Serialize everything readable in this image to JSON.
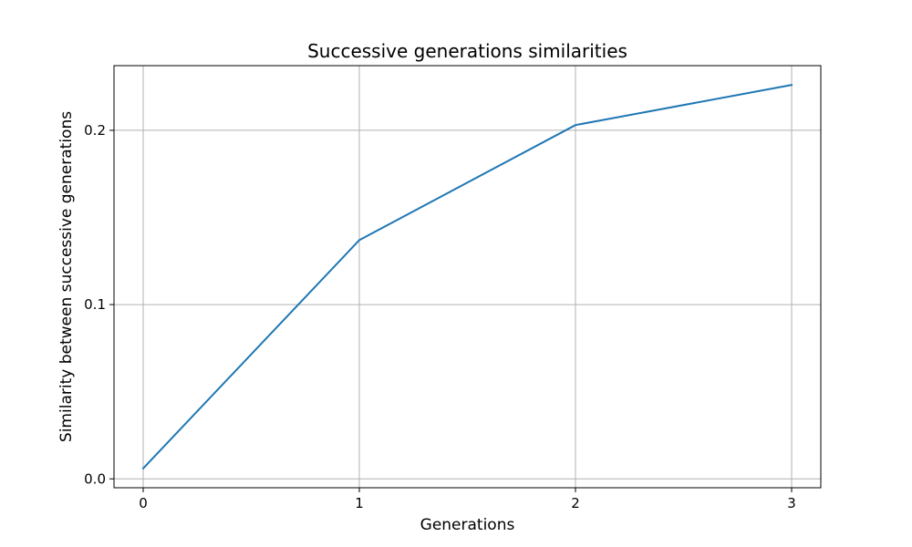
{
  "chart_data": {
    "type": "line",
    "title": "Successive generations similarities",
    "xlabel": "Generations",
    "ylabel": "Similarity between successive generations",
    "x": [
      0,
      1,
      2,
      3
    ],
    "series": [
      {
        "values": [
          0.006,
          0.137,
          0.203,
          0.226
        ]
      }
    ],
    "xticks": [
      0,
      1,
      2,
      3
    ],
    "xtick_labels": [
      "0",
      "1",
      "2",
      "3"
    ],
    "yticks": [
      0.0,
      0.1,
      0.2
    ],
    "ytick_labels": [
      "0.0",
      "0.1",
      "0.2"
    ],
    "xlim": [
      -0.135,
      3.135
    ],
    "ylim": [
      -0.0051,
      0.2371
    ],
    "grid": true,
    "colors": {
      "series": "#1f77b4",
      "grid": "#b0b0b0",
      "frame": "#000000"
    }
  }
}
